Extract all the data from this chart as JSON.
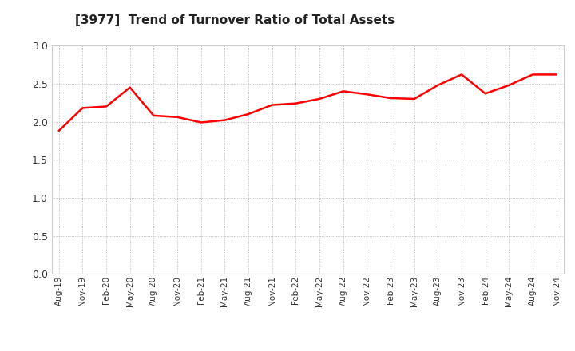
{
  "title": "[3977]  Trend of Turnover Ratio of Total Assets",
  "title_fontsize": 11,
  "line_color": "#FF0000",
  "background_color": "#FFFFFF",
  "grid_color": "#AAAAAA",
  "ylim": [
    0.0,
    3.0
  ],
  "yticks": [
    0.0,
    0.5,
    1.0,
    1.5,
    2.0,
    2.5,
    3.0
  ],
  "x_labels": [
    "Aug-19",
    "Nov-19",
    "Feb-20",
    "May-20",
    "Aug-20",
    "Nov-20",
    "Feb-21",
    "May-21",
    "Aug-21",
    "Nov-21",
    "Feb-22",
    "May-22",
    "Aug-22",
    "Nov-22",
    "Feb-23",
    "May-23",
    "Aug-23",
    "Nov-23",
    "Feb-24",
    "May-24",
    "Aug-24",
    "Nov-24"
  ],
  "values": [
    1.88,
    2.18,
    2.2,
    2.45,
    2.08,
    2.06,
    1.99,
    2.02,
    2.1,
    2.22,
    2.24,
    2.3,
    2.4,
    2.36,
    2.31,
    2.3,
    2.48,
    2.62,
    2.37,
    2.48,
    2.62,
    2.62
  ],
  "fill_color": "#FF9999",
  "fill_alpha": 0.25
}
